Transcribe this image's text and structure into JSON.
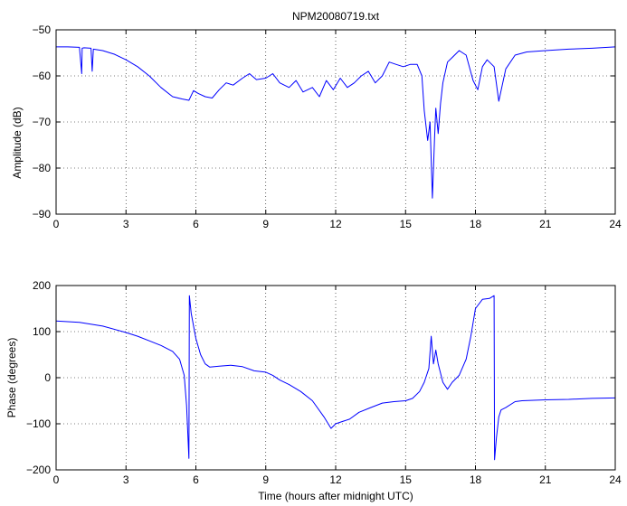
{
  "figure": {
    "title": "NPM20080719.txt"
  },
  "chart_data": [
    {
      "type": "line",
      "title": "NPM20080719.txt",
      "xlabel": "",
      "ylabel": "Amplitude (dB)",
      "xlim": [
        0,
        24
      ],
      "ylim": [
        -90,
        -50
      ],
      "xticks": [
        0,
        3,
        6,
        9,
        12,
        15,
        18,
        21,
        24
      ],
      "yticks": [
        -90,
        -80,
        -70,
        -60,
        -50
      ],
      "grid": true,
      "line_color": "#0000ff",
      "series": [
        {
          "x": [
            0,
            0.5,
            1.0,
            1.1,
            1.12,
            1.2,
            1.5,
            1.55,
            1.6,
            2.0,
            2.5,
            3.0,
            3.5,
            4.0,
            4.5,
            5.0,
            5.4,
            5.7,
            5.9,
            6.1,
            6.4,
            6.7,
            7.0,
            7.3,
            7.6,
            8.0,
            8.3,
            8.6,
            9.0,
            9.3,
            9.6,
            10.0,
            10.3,
            10.6,
            11.0,
            11.3,
            11.6,
            11.9,
            12.2,
            12.5,
            12.8,
            13.1,
            13.4,
            13.7,
            14.0,
            14.3,
            14.6,
            14.9,
            15.2,
            15.5,
            15.7,
            15.8,
            15.95,
            16.05,
            16.15,
            16.25,
            16.3,
            16.4,
            16.5,
            16.6,
            16.8,
            17.0,
            17.3,
            17.6,
            17.9,
            18.1,
            18.3,
            18.5,
            18.8,
            19.0,
            19.3,
            19.7,
            20.2,
            21.0,
            22.0,
            23.0,
            24.0
          ],
          "values": [
            -53.7,
            -53.7,
            -53.8,
            -59.5,
            -54,
            -53.9,
            -54,
            -59,
            -54.2,
            -54.5,
            -55.3,
            -56.5,
            -58,
            -60,
            -62.5,
            -64.5,
            -65,
            -65.3,
            -63.2,
            -63.8,
            -64.5,
            -64.8,
            -63,
            -61.5,
            -62,
            -60.5,
            -59.5,
            -60.8,
            -60.5,
            -59.5,
            -61.5,
            -62.5,
            -61,
            -63.5,
            -62.5,
            -64.5,
            -61,
            -63,
            -60.5,
            -62.5,
            -61.5,
            -60,
            -59,
            -61.5,
            -60,
            -57,
            -57.5,
            -58,
            -57.5,
            -57.5,
            -60,
            -67.5,
            -74,
            -70,
            -86.5,
            -73,
            -67,
            -72.5,
            -66,
            -61.5,
            -57,
            -56,
            -54.5,
            -55.5,
            -61,
            -63,
            -58,
            -56.5,
            -58,
            -65.5,
            -58.5,
            -55.5,
            -54.8,
            -54.5,
            -54.2,
            -54,
            -53.7
          ]
        }
      ]
    },
    {
      "type": "line",
      "title": "",
      "xlabel": "Time (hours after midnight UTC)",
      "ylabel": "Phase (degrees)",
      "xlim": [
        0,
        24
      ],
      "ylim": [
        -200,
        200
      ],
      "xticks": [
        0,
        3,
        6,
        9,
        12,
        15,
        18,
        21,
        24
      ],
      "yticks": [
        -200,
        -100,
        0,
        100,
        200
      ],
      "grid": true,
      "line_color": "#0000ff",
      "series": [
        {
          "x": [
            0,
            1,
            2,
            3,
            3.5,
            4,
            4.5,
            5,
            5.3,
            5.5,
            5.6,
            5.7,
            5.72,
            5.8,
            6.0,
            6.2,
            6.4,
            6.6,
            7,
            7.5,
            8,
            8.5,
            9,
            9.3,
            9.6,
            10,
            10.5,
            11,
            11.5,
            11.8,
            12,
            12.3,
            12.6,
            13,
            13.5,
            14,
            14.5,
            15,
            15.3,
            15.6,
            15.8,
            16.0,
            16.1,
            16.2,
            16.3,
            16.4,
            16.6,
            16.8,
            17,
            17.3,
            17.6,
            17.8,
            18,
            18.3,
            18.6,
            18.8,
            18.82,
            18.9,
            19.0,
            19.1,
            19.3,
            19.7,
            20,
            21,
            22,
            23,
            24
          ],
          "values": [
            123,
            120,
            112,
            98,
            90,
            80,
            70,
            57,
            40,
            5,
            -60,
            -175,
            178,
            140,
            85,
            50,
            30,
            23,
            25,
            27,
            24,
            15,
            12,
            5,
            -5,
            -15,
            -30,
            -50,
            -85,
            -110,
            -100,
            -95,
            -90,
            -75,
            -65,
            -55,
            -52,
            -50,
            -45,
            -30,
            -10,
            20,
            90,
            30,
            60,
            30,
            -10,
            -25,
            -10,
            5,
            40,
            90,
            150,
            170,
            172,
            178,
            -178,
            -130,
            -85,
            -70,
            -65,
            -52,
            -50,
            -48,
            -47,
            -45,
            -44
          ]
        }
      ]
    }
  ]
}
